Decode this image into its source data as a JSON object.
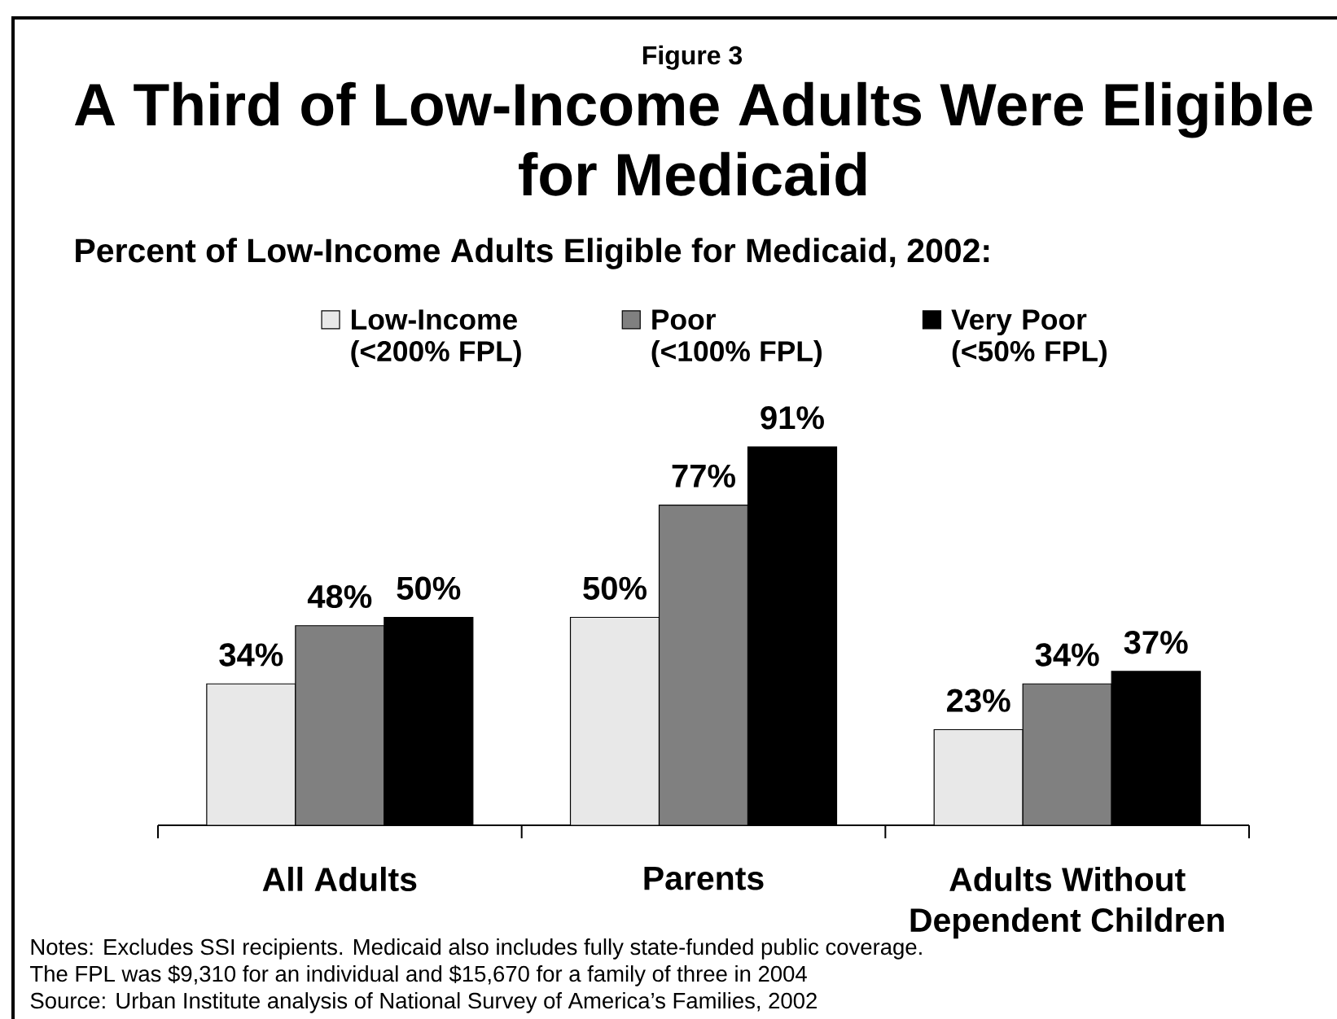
{
  "chart_data": {
    "type": "bar",
    "title": "A Third of Low-Income Adults Were Eligible for Medicaid",
    "subtitle": "Percent of Low-Income Adults Eligible for Medicaid, 2002:",
    "annotations": [
      "Figure 3",
      "Notes: Excludes SSI recipients. Medicaid also includes fully state-funded public coverage.",
      "The FPL was $9,310 for an individual and $15,670 for a family of three in 2004",
      "Source: Urban Institute analysis of National Survey of America’s Families, 2002"
    ],
    "categories": [
      "All Adults",
      "Parents",
      "Adults Without Dependent Children"
    ],
    "series": [
      {
        "name": "Low-Income (<200% FPL)",
        "color": "#e8e8e8",
        "values": [
          34,
          50,
          23
        ],
        "value_labels": [
          "34%",
          "50%",
          "23%"
        ]
      },
      {
        "name": "Poor (<100% FPL)",
        "color": "#808080",
        "values": [
          48,
          77,
          34
        ],
        "value_labels": [
          "48%",
          "77%",
          "34%"
        ]
      },
      {
        "name": "Very Poor (<50% FPL)",
        "color": "#000000",
        "values": [
          50,
          91,
          37
        ],
        "value_labels": [
          "50%",
          "91%",
          "37%"
        ]
      }
    ],
    "legend": "top"
  }
}
